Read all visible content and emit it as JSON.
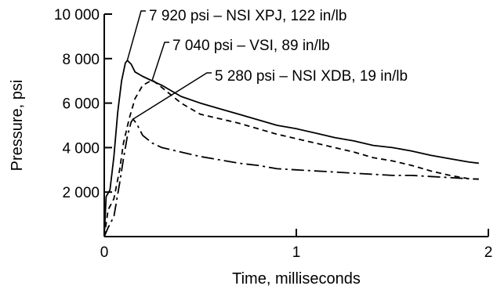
{
  "chart_data": {
    "type": "line",
    "xlabel": "Time, milliseconds",
    "ylabel": "Pressure, psi",
    "xlim": [
      0,
      2
    ],
    "ylim": [
      0,
      10000
    ],
    "x_ticks": [
      "0",
      "1",
      "2"
    ],
    "x_tick_values": [
      0,
      1,
      2
    ],
    "y_ticks": [
      "2 000",
      "4 000",
      "6 000",
      "8 000",
      "10 000"
    ],
    "y_tick_values": [
      2000,
      4000,
      6000,
      8000,
      10000
    ],
    "grid": false,
    "series": [
      {
        "name": "NSI XPJ",
        "line_style": "solid",
        "x": [
          0,
          0.01,
          0.03,
          0.05,
          0.07,
          0.09,
          0.11,
          0.12,
          0.14,
          0.16,
          0.2,
          0.3,
          0.4,
          0.5,
          0.6,
          0.7,
          0.8,
          0.9,
          1.0,
          1.1,
          1.2,
          1.3,
          1.4,
          1.5,
          1.6,
          1.7,
          1.8,
          1.9,
          1.95
        ],
        "values": [
          0,
          1800,
          2100,
          3600,
          5600,
          7000,
          7800,
          7920,
          7750,
          7400,
          7200,
          6800,
          6300,
          6000,
          5750,
          5500,
          5250,
          5000,
          4850,
          4650,
          4450,
          4300,
          4100,
          4000,
          3850,
          3650,
          3500,
          3350,
          3300
        ]
      },
      {
        "name": "VSI",
        "line_style": "dashed",
        "x": [
          0,
          0.02,
          0.05,
          0.08,
          0.1,
          0.13,
          0.16,
          0.2,
          0.25,
          0.3,
          0.4,
          0.5,
          0.6,
          0.7,
          0.8,
          0.9,
          1.0,
          1.1,
          1.2,
          1.3,
          1.4,
          1.5,
          1.6,
          1.7,
          1.8,
          1.9,
          1.95
        ],
        "values": [
          0,
          1200,
          1700,
          3000,
          4200,
          5300,
          6200,
          6800,
          7040,
          6700,
          6000,
          5500,
          5300,
          5100,
          4850,
          4600,
          4400,
          4200,
          4000,
          3800,
          3550,
          3400,
          3200,
          2950,
          2750,
          2600,
          2580
        ]
      },
      {
        "name": "NSI XDB",
        "line_style": "dash-dot",
        "x": [
          0,
          0.02,
          0.05,
          0.08,
          0.1,
          0.12,
          0.14,
          0.15,
          0.17,
          0.2,
          0.25,
          0.3,
          0.4,
          0.5,
          0.6,
          0.7,
          0.8,
          0.9,
          1.0,
          1.1,
          1.2,
          1.3,
          1.4,
          1.5,
          1.6,
          1.7,
          1.8,
          1.9,
          1.95
        ],
        "values": [
          0,
          400,
          900,
          2400,
          3500,
          4500,
          5150,
          5280,
          5050,
          4550,
          4200,
          4000,
          3800,
          3600,
          3450,
          3300,
          3200,
          3050,
          3000,
          2950,
          2900,
          2850,
          2800,
          2750,
          2750,
          2700,
          2650,
          2600,
          2580
        ]
      }
    ],
    "annotations": [
      {
        "text": "7 920 psi – NSI XPJ, 122 in/lb",
        "series": 0,
        "x": 0.12,
        "y": 7920
      },
      {
        "text": "7 040 psi – VSI, 89 in/lb",
        "series": 1,
        "x": 0.25,
        "y": 7040
      },
      {
        "text": "5 280 psi – NSI XDB, 19 in/lb",
        "series": 2,
        "x": 0.15,
        "y": 5280
      }
    ]
  }
}
